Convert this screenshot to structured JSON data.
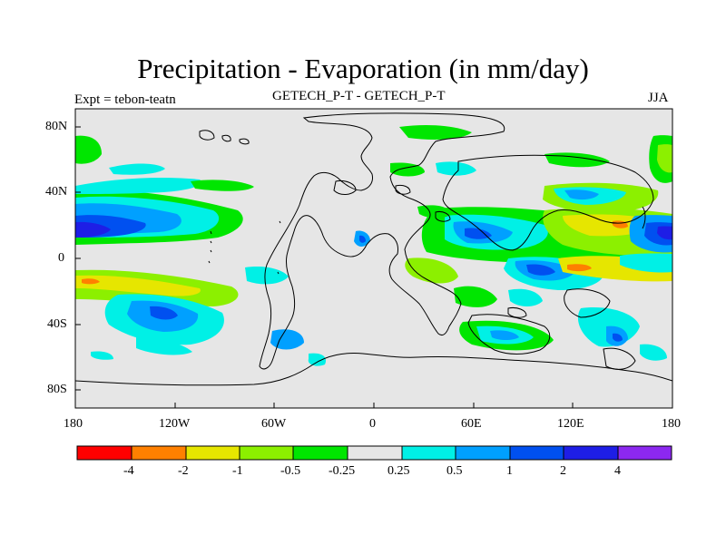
{
  "title": "Precipitation - Evaporation (in mm/day)",
  "subtitle_left": "Expt = tebon-teatn",
  "subtitle_center": "GETECH_P-T - GETECH_P-T",
  "subtitle_right": "JJA",
  "lat_labels": [
    "80N",
    "40N",
    "0",
    "40S",
    "80S"
  ],
  "lon_labels": [
    "180",
    "120W",
    "60W",
    "0",
    "60E",
    "120E",
    "180"
  ],
  "colorbar": {
    "colors": [
      "#ff0000",
      "#ff8000",
      "#e6e600",
      "#8cf000",
      "#00e600",
      "#e6e6e6",
      "#00f0e6",
      "#00a0ff",
      "#0050f0",
      "#1e1ee6",
      "#8c28f0"
    ],
    "labels": [
      "-4",
      "-2",
      "-1",
      "-0.5",
      "-0.25",
      "0.25",
      "0.5",
      "1",
      "2",
      "4"
    ]
  }
}
